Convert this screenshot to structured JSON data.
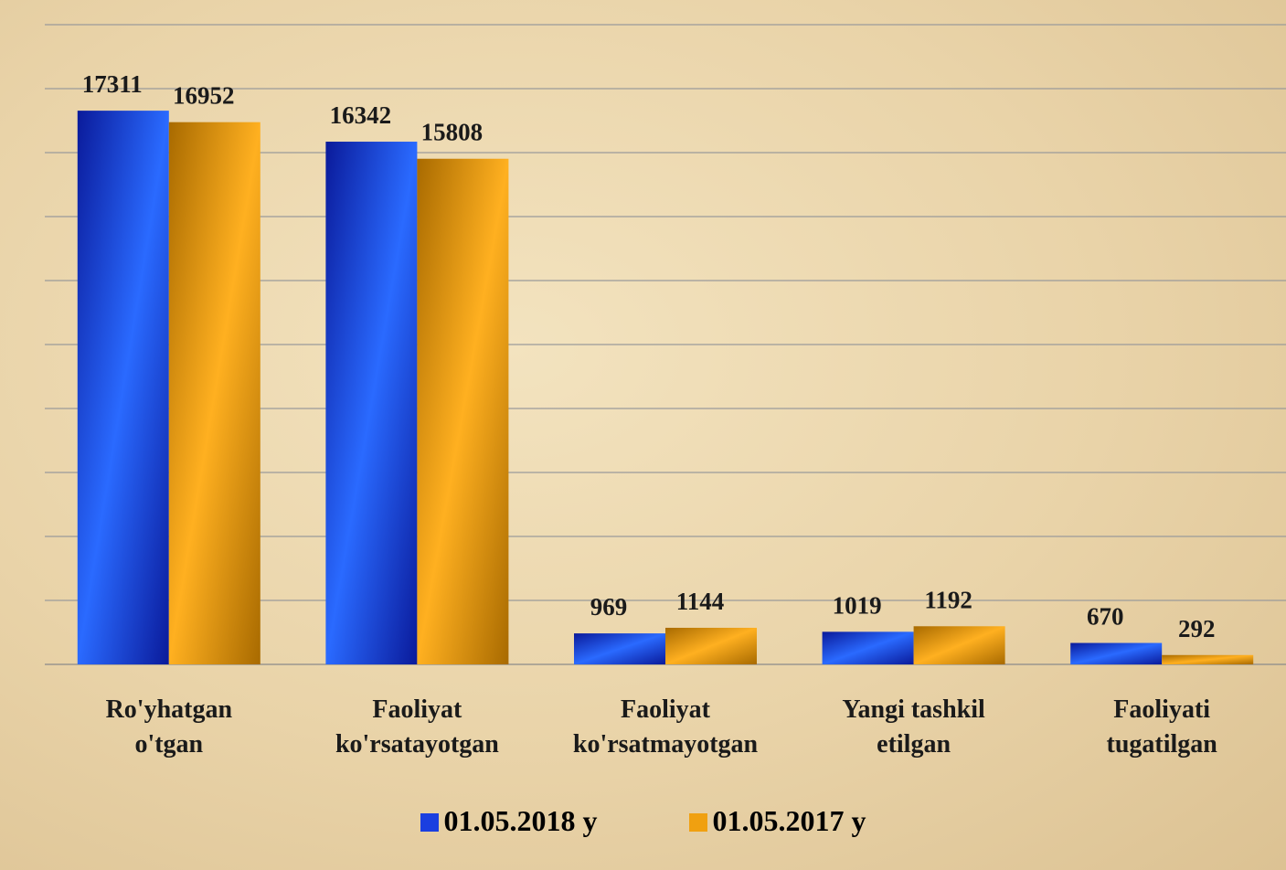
{
  "chart_data": {
    "type": "bar",
    "categories": [
      "Ro'yhatgan\no'tgan",
      "Faoliyat\nko'rsatayotgan",
      "Faoliyat\nko'rsatmayotgan",
      "Yangi tashkil\netilgan",
      "Faoliyati\ntugatilgan"
    ],
    "series": [
      {
        "name": "01.05.2018 y",
        "color": "#1a3fe0",
        "values": [
          17311,
          16342,
          969,
          1019,
          670
        ]
      },
      {
        "name": "01.05.2017 y",
        "color": "#f0a010",
        "values": [
          16952,
          15808,
          1144,
          1192,
          292
        ]
      }
    ],
    "ylim": [
      0,
      20000
    ],
    "yticks": [
      0,
      2000,
      4000,
      6000,
      8000,
      10000,
      12000,
      14000,
      16000,
      18000,
      20000
    ],
    "grid": true
  }
}
